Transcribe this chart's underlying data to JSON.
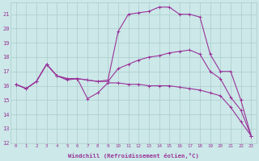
{
  "xlabel": "Windchill (Refroidissement éolien,°C)",
  "bg_color": "#cce8e8",
  "grid_color": "#aacccc",
  "line_color": "#993399",
  "xlim": [
    -0.5,
    23.5
  ],
  "ylim": [
    12,
    21.8
  ],
  "yticks": [
    12,
    13,
    14,
    15,
    16,
    17,
    18,
    19,
    20,
    21
  ],
  "xticks": [
    0,
    1,
    2,
    3,
    4,
    5,
    6,
    7,
    8,
    9,
    10,
    11,
    12,
    13,
    14,
    15,
    16,
    17,
    18,
    19,
    20,
    21,
    22,
    23
  ],
  "line1_x": [
    0,
    1,
    2,
    3,
    4,
    5,
    6,
    7,
    8,
    9,
    10,
    11,
    12,
    13,
    14,
    15,
    16,
    17,
    18,
    19,
    20,
    21,
    22,
    23
  ],
  "line1_y": [
    16.1,
    15.8,
    16.3,
    17.5,
    16.7,
    16.4,
    16.5,
    16.4,
    16.3,
    16.3,
    17.2,
    17.5,
    17.8,
    18.0,
    18.1,
    18.3,
    18.4,
    18.5,
    18.2,
    17.0,
    16.5,
    15.2,
    14.3,
    12.5
  ],
  "line2_x": [
    0,
    1,
    2,
    3,
    4,
    5,
    6,
    7,
    8,
    9,
    10,
    11,
    12,
    13,
    14,
    15,
    16,
    17,
    18,
    19,
    20,
    21,
    22,
    23
  ],
  "line2_y": [
    16.1,
    15.8,
    16.3,
    17.5,
    16.7,
    16.5,
    16.5,
    15.1,
    15.5,
    16.2,
    16.2,
    16.1,
    16.1,
    16.0,
    16.0,
    16.0,
    15.9,
    15.8,
    15.7,
    15.5,
    15.3,
    14.5,
    13.5,
    12.5
  ],
  "line3_x": [
    0,
    1,
    2,
    3,
    4,
    5,
    6,
    7,
    8,
    9,
    10,
    11,
    12,
    13,
    14,
    15,
    16,
    17,
    18,
    19,
    20,
    21,
    22,
    23
  ],
  "line3_y": [
    16.1,
    15.8,
    16.3,
    17.5,
    16.7,
    16.5,
    16.5,
    16.4,
    16.3,
    16.4,
    19.8,
    21.0,
    21.1,
    21.2,
    21.5,
    21.5,
    21.0,
    21.0,
    20.8,
    18.2,
    17.0,
    17.0,
    15.0,
    12.5
  ]
}
